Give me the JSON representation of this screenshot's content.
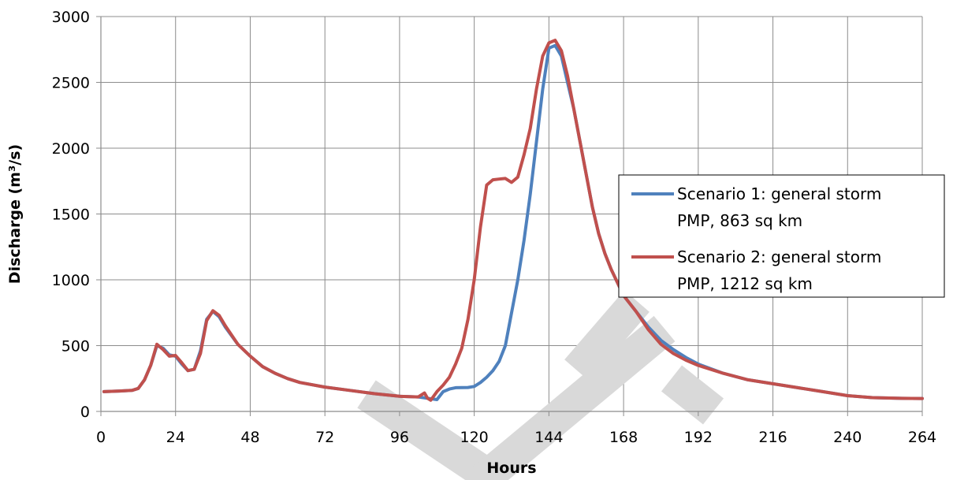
{
  "chart_data": {
    "type": "line",
    "xlabel": "Hours",
    "ylabel": "Discharge (m³/s)",
    "xlim": [
      0,
      264
    ],
    "ylim": [
      0,
      3000
    ],
    "xticks": [
      0,
      24,
      48,
      72,
      96,
      120,
      144,
      168,
      192,
      216,
      240,
      264
    ],
    "yticks": [
      0,
      500,
      1000,
      1500,
      2000,
      2500,
      3000
    ],
    "grid": true,
    "legend": "right",
    "watermark": "DRAFT",
    "series": [
      {
        "name": "Scenario 1: general storm PMP, 863 sq km",
        "color": "#4f81bd",
        "x": [
          1,
          6,
          10,
          12,
          14,
          16,
          18,
          20,
          22,
          24,
          26,
          28,
          30,
          32,
          34,
          36,
          38,
          40,
          44,
          48,
          52,
          56,
          60,
          64,
          72,
          80,
          88,
          96,
          102,
          105,
          108,
          110,
          112,
          114,
          118,
          120,
          122,
          124,
          126,
          128,
          130,
          132,
          134,
          136,
          138,
          140,
          142,
          144,
          146,
          148,
          150,
          152,
          154,
          156,
          158,
          160,
          162,
          164,
          166,
          168,
          172,
          176,
          180,
          184,
          188,
          192,
          200,
          208,
          216,
          224,
          232,
          240,
          248,
          256,
          264
        ],
        "y": [
          150,
          155,
          160,
          175,
          240,
          350,
          500,
          480,
          430,
          420,
          360,
          310,
          320,
          460,
          700,
          760,
          720,
          640,
          510,
          420,
          340,
          290,
          250,
          220,
          185,
          160,
          135,
          115,
          110,
          100,
          90,
          150,
          170,
          180,
          182,
          190,
          220,
          260,
          310,
          380,
          500,
          750,
          1000,
          1300,
          1650,
          2050,
          2450,
          2760,
          2780,
          2700,
          2500,
          2300,
          2050,
          1800,
          1550,
          1350,
          1200,
          1080,
          980,
          880,
          760,
          640,
          540,
          470,
          410,
          360,
          290,
          240,
          210,
          180,
          150,
          120,
          105,
          100,
          98
        ]
      },
      {
        "name": "Scenario 2: general storm PMP, 1212 sq km",
        "color": "#c0504d",
        "x": [
          1,
          6,
          10,
          12,
          14,
          16,
          18,
          20,
          22,
          24,
          26,
          28,
          30,
          32,
          34,
          36,
          38,
          40,
          44,
          48,
          52,
          56,
          60,
          64,
          72,
          80,
          88,
          96,
          102,
          104,
          105,
          106,
          108,
          110,
          112,
          114,
          116,
          118,
          120,
          122,
          124,
          126,
          128,
          130,
          132,
          134,
          136,
          138,
          140,
          142,
          144,
          146,
          148,
          150,
          152,
          154,
          156,
          158,
          160,
          162,
          164,
          166,
          168,
          172,
          176,
          180,
          184,
          188,
          192,
          200,
          208,
          216,
          224,
          232,
          240,
          248,
          256,
          264
        ],
        "y": [
          150,
          155,
          160,
          175,
          240,
          350,
          510,
          470,
          420,
          425,
          370,
          310,
          320,
          440,
          690,
          765,
          730,
          650,
          510,
          420,
          340,
          290,
          250,
          220,
          185,
          160,
          135,
          115,
          110,
          140,
          100,
          85,
          150,
          200,
          260,
          360,
          480,
          700,
          1000,
          1400,
          1720,
          1760,
          1765,
          1770,
          1740,
          1780,
          1950,
          2150,
          2450,
          2700,
          2800,
          2820,
          2740,
          2550,
          2300,
          2050,
          1800,
          1550,
          1350,
          1200,
          1080,
          980,
          880,
          760,
          620,
          510,
          440,
          390,
          350,
          290,
          240,
          210,
          180,
          150,
          120,
          105,
          100,
          98
        ]
      }
    ]
  }
}
